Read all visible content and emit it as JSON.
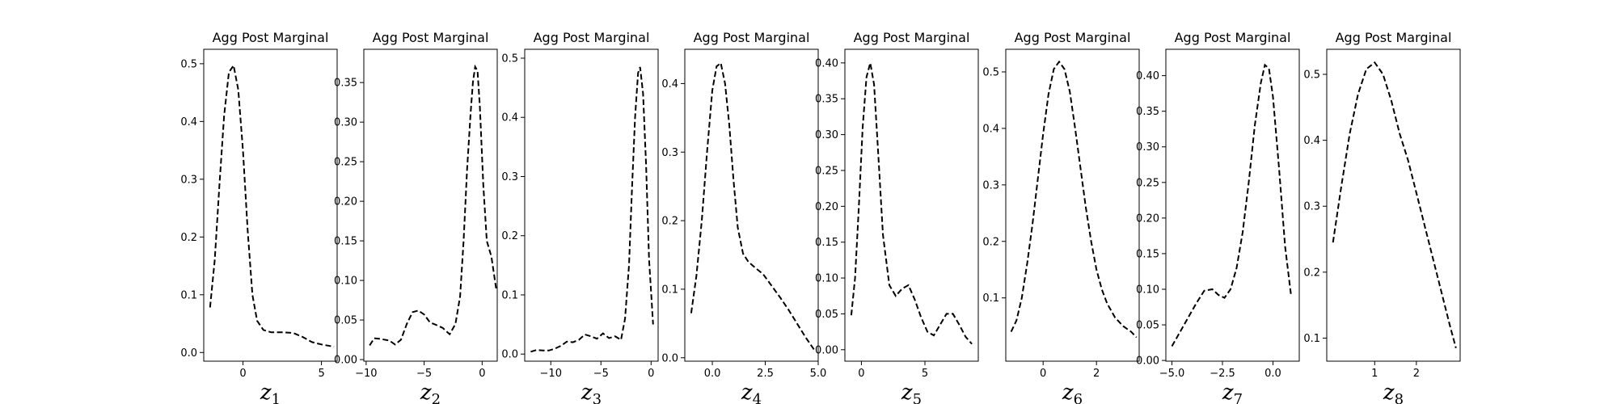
{
  "chart_data": [
    {
      "type": "line",
      "title": "Agg Post Marginal",
      "xlabel": {
        "base": "z",
        "sub": "1"
      },
      "xlim": [
        -2.5,
        6.0
      ],
      "ylim": [
        -0.015,
        0.525
      ],
      "xticks": [
        0,
        5
      ],
      "yticks": [
        0.0,
        0.1,
        0.2,
        0.3,
        0.4,
        0.5
      ],
      "ytick_labels": [
        "0.0",
        "0.1",
        "0.2",
        "0.3",
        "0.4",
        "0.5"
      ],
      "series": [
        {
          "style": "dashed",
          "color": "#000000",
          "x": [
            -2.1,
            -1.8,
            -1.5,
            -1.2,
            -0.9,
            -0.6,
            -0.3,
            0.0,
            0.3,
            0.6,
            0.9,
            1.3,
            1.8,
            2.5,
            3.2,
            3.8,
            4.4,
            5.0,
            5.8
          ],
          "y": [
            0.078,
            0.16,
            0.29,
            0.41,
            0.485,
            0.497,
            0.455,
            0.35,
            0.21,
            0.1,
            0.055,
            0.039,
            0.035,
            0.035,
            0.034,
            0.027,
            0.018,
            0.014,
            0.01
          ]
        }
      ]
    },
    {
      "type": "line",
      "title": "Agg Post Marginal",
      "xlabel": {
        "base": "z",
        "sub": "2"
      },
      "xlim": [
        -10.2,
        1.3
      ],
      "ylim": [
        -0.002,
        0.392
      ],
      "xticks": [
        -10,
        -5,
        0
      ],
      "yticks": [
        0.0,
        0.05,
        0.1,
        0.15,
        0.2,
        0.25,
        0.3,
        0.35
      ],
      "ytick_labels": [
        "0.00",
        "0.05",
        "0.10",
        "0.15",
        "0.20",
        "0.25",
        "0.30",
        "0.35"
      ],
      "series": [
        {
          "style": "dashed",
          "color": "#000000",
          "x": [
            -9.7,
            -9.3,
            -8.7,
            -8.0,
            -7.5,
            -7.0,
            -6.5,
            -6.0,
            -5.5,
            -5.0,
            -4.5,
            -4.0,
            -3.4,
            -2.8,
            -2.3,
            -1.9,
            -1.6,
            -1.3,
            -1.0,
            -0.8,
            -0.6,
            -0.4,
            -0.2,
            0.1,
            0.4,
            0.8,
            1.2
          ],
          "y": [
            0.018,
            0.027,
            0.026,
            0.024,
            0.019,
            0.025,
            0.045,
            0.06,
            0.062,
            0.057,
            0.047,
            0.044,
            0.04,
            0.032,
            0.045,
            0.08,
            0.15,
            0.24,
            0.31,
            0.35,
            0.37,
            0.365,
            0.32,
            0.22,
            0.15,
            0.13,
            0.09
          ]
        }
      ]
    },
    {
      "type": "line",
      "title": "Agg Post Marginal",
      "xlabel": {
        "base": "z",
        "sub": "3"
      },
      "xlim": [
        -12.6,
        0.7
      ],
      "ylim": [
        -0.012,
        0.515
      ],
      "xticks": [
        -10,
        -5,
        0
      ],
      "yticks": [
        0.0,
        0.1,
        0.2,
        0.3,
        0.4,
        0.5
      ],
      "ytick_labels": [
        "0.0",
        "0.1",
        "0.2",
        "0.3",
        "0.4",
        "0.5"
      ],
      "series": [
        {
          "style": "dashed",
          "color": "#000000",
          "x": [
            -12.0,
            -11.4,
            -10.8,
            -10.2,
            -9.6,
            -9.0,
            -8.4,
            -7.8,
            -7.2,
            -6.6,
            -6.0,
            -5.4,
            -4.8,
            -4.2,
            -3.6,
            -3.0,
            -2.6,
            -2.2,
            -1.9,
            -1.6,
            -1.3,
            -1.1,
            -0.8,
            -0.5,
            -0.2,
            0.2
          ],
          "y": [
            0.004,
            0.007,
            0.006,
            0.006,
            0.009,
            0.014,
            0.021,
            0.02,
            0.024,
            0.033,
            0.03,
            0.026,
            0.035,
            0.027,
            0.03,
            0.024,
            0.06,
            0.15,
            0.28,
            0.4,
            0.475,
            0.485,
            0.44,
            0.32,
            0.16,
            0.05
          ]
        }
      ]
    },
    {
      "type": "line",
      "title": "Agg Post Marginal",
      "xlabel": {
        "base": "z",
        "sub": "4"
      },
      "xlim": [
        -1.3,
        5.0
      ],
      "ylim": [
        -0.005,
        0.45
      ],
      "xticks": [
        0.0,
        2.5,
        5.0
      ],
      "xtick_labels": [
        "0.0",
        "2.5",
        "5.0"
      ],
      "yticks": [
        0.0,
        0.1,
        0.2,
        0.3,
        0.4
      ],
      "ytick_labels": [
        "0.0",
        "0.1",
        "0.2",
        "0.3",
        "0.4"
      ],
      "series": [
        {
          "style": "dashed",
          "color": "#000000",
          "x": [
            -1.0,
            -0.75,
            -0.5,
            -0.25,
            0.0,
            0.2,
            0.4,
            0.6,
            0.8,
            1.0,
            1.2,
            1.45,
            1.7,
            2.0,
            2.4,
            2.8,
            3.2,
            3.6,
            4.0,
            4.4,
            4.8
          ],
          "y": [
            0.065,
            0.12,
            0.2,
            0.3,
            0.39,
            0.425,
            0.43,
            0.4,
            0.34,
            0.26,
            0.19,
            0.152,
            0.14,
            0.132,
            0.122,
            0.105,
            0.088,
            0.07,
            0.05,
            0.03,
            0.012
          ]
        }
      ]
    },
    {
      "type": "line",
      "title": "Agg Post Marginal",
      "xlabel": {
        "base": "z",
        "sub": "5"
      },
      "xlim": [
        -1.3,
        9.2
      ],
      "ylim": [
        -0.016,
        0.419
      ],
      "xticks": [
        0,
        5
      ],
      "yticks": [
        0.0,
        0.05,
        0.1,
        0.15,
        0.2,
        0.25,
        0.3,
        0.35,
        0.4
      ],
      "ytick_labels": [
        "0.00",
        "0.05",
        "0.10",
        "0.15",
        "0.20",
        "0.25",
        "0.30",
        "0.35",
        "0.40"
      ],
      "series": [
        {
          "style": "dashed",
          "color": "#000000",
          "x": [
            -0.8,
            -0.5,
            -0.2,
            0.1,
            0.4,
            0.7,
            1.0,
            1.3,
            1.7,
            2.2,
            2.7,
            3.2,
            3.7,
            4.2,
            4.7,
            5.2,
            5.7,
            6.2,
            6.7,
            7.2,
            7.7,
            8.2,
            8.7
          ],
          "y": [
            0.048,
            0.1,
            0.2,
            0.31,
            0.38,
            0.4,
            0.37,
            0.28,
            0.16,
            0.09,
            0.075,
            0.085,
            0.09,
            0.07,
            0.045,
            0.025,
            0.02,
            0.035,
            0.05,
            0.05,
            0.035,
            0.018,
            0.008
          ]
        }
      ]
    },
    {
      "type": "line",
      "title": "Agg Post Marginal",
      "xlabel": {
        "base": "z",
        "sub": "6"
      },
      "xlim": [
        -1.4,
        3.6
      ],
      "ylim": [
        -0.012,
        0.54
      ],
      "xticks": [
        0,
        2
      ],
      "yticks": [
        0.1,
        0.2,
        0.3,
        0.4,
        0.5
      ],
      "ytick_labels": [
        "0.1",
        "0.2",
        "0.3",
        "0.4",
        "0.5"
      ],
      "series": [
        {
          "style": "dashed",
          "color": "#000000",
          "x": [
            -1.2,
            -1.0,
            -0.8,
            -0.6,
            -0.4,
            -0.2,
            0.0,
            0.2,
            0.4,
            0.6,
            0.8,
            1.0,
            1.2,
            1.4,
            1.6,
            1.8,
            2.0,
            2.2,
            2.4,
            2.7,
            3.0,
            3.3,
            3.5
          ],
          "y": [
            0.04,
            0.06,
            0.1,
            0.16,
            0.23,
            0.31,
            0.39,
            0.46,
            0.505,
            0.518,
            0.505,
            0.465,
            0.4,
            0.33,
            0.26,
            0.2,
            0.15,
            0.115,
            0.09,
            0.065,
            0.05,
            0.04,
            0.03
          ]
        }
      ]
    },
    {
      "type": "line",
      "title": "Agg Post Marginal",
      "xlabel": {
        "base": "z",
        "sub": "7"
      },
      "xlim": [
        -5.3,
        1.3
      ],
      "ylim": [
        -0.001,
        0.437
      ],
      "xticks": [
        -5.0,
        -2.5,
        0.0
      ],
      "xtick_labels": [
        "−5.0",
        "−2.5",
        "0.0"
      ],
      "yticks": [
        0.0,
        0.05,
        0.1,
        0.15,
        0.2,
        0.25,
        0.3,
        0.35,
        0.4
      ],
      "ytick_labels": [
        "0.00",
        "0.05",
        "0.10",
        "0.15",
        "0.20",
        "0.25",
        "0.30",
        "0.35",
        "0.40"
      ],
      "series": [
        {
          "style": "dashed",
          "color": "#000000",
          "x": [
            -5.0,
            -4.6,
            -4.2,
            -3.8,
            -3.4,
            -3.0,
            -2.7,
            -2.4,
            -2.1,
            -1.8,
            -1.5,
            -1.2,
            -0.9,
            -0.6,
            -0.4,
            -0.2,
            0.0,
            0.3,
            0.6,
            0.9
          ],
          "y": [
            0.02,
            0.04,
            0.06,
            0.08,
            0.098,
            0.1,
            0.092,
            0.088,
            0.1,
            0.13,
            0.18,
            0.25,
            0.33,
            0.39,
            0.415,
            0.41,
            0.37,
            0.27,
            0.16,
            0.09
          ]
        }
      ]
    },
    {
      "type": "line",
      "title": "Agg Post Marginal",
      "xlabel": {
        "base": "z",
        "sub": "8"
      },
      "xlim": [
        -0.15,
        3.05
      ],
      "ylim": [
        0.065,
        0.538
      ],
      "xticks": [
        1,
        2
      ],
      "yticks": [
        0.1,
        0.2,
        0.3,
        0.4,
        0.5
      ],
      "ytick_labels": [
        "0.1",
        "0.2",
        "0.3",
        "0.4",
        "0.5"
      ],
      "series": [
        {
          "style": "dashed",
          "color": "#000000",
          "x": [
            0.0,
            0.2,
            0.4,
            0.6,
            0.8,
            1.0,
            1.2,
            1.4,
            1.6,
            1.8,
            2.0,
            2.2,
            2.4,
            2.6,
            2.8,
            2.95
          ],
          "y": [
            0.245,
            0.33,
            0.41,
            0.47,
            0.508,
            0.518,
            0.5,
            0.46,
            0.41,
            0.37,
            0.32,
            0.27,
            0.22,
            0.17,
            0.12,
            0.085
          ]
        }
      ]
    }
  ]
}
